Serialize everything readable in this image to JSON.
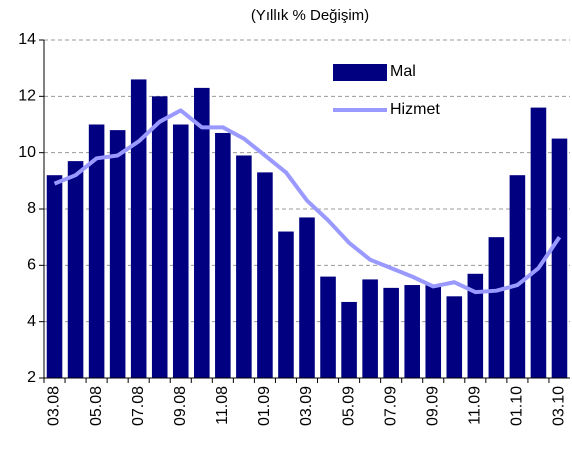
{
  "chart_data": {
    "type": "bar_line",
    "title": "(Yıllık % Değişim)",
    "categories": [
      "03.08",
      null,
      "05.08",
      null,
      "07.08",
      null,
      "09.08",
      null,
      "11.08",
      null,
      "01.09",
      null,
      "03.09",
      null,
      "05.09",
      null,
      "07.09",
      null,
      "09.09",
      null,
      "11.09",
      null,
      "01.10",
      null,
      "03.10"
    ],
    "series": [
      {
        "name": "Mal",
        "type": "bar",
        "color": "#000080",
        "values": [
          9.2,
          9.7,
          11.0,
          10.8,
          12.6,
          12.0,
          11.0,
          12.3,
          10.7,
          9.9,
          9.3,
          7.2,
          7.7,
          5.6,
          4.7,
          5.5,
          5.2,
          5.3,
          5.3,
          4.9,
          5.7,
          7.0,
          9.2,
          11.6,
          10.5
        ]
      },
      {
        "name": "Hizmet",
        "type": "line",
        "color": "#9999ff",
        "values": [
          8.9,
          9.2,
          9.8,
          9.9,
          10.4,
          11.1,
          11.5,
          10.9,
          10.9,
          10.5,
          9.9,
          9.3,
          8.3,
          7.6,
          6.8,
          6.2,
          5.9,
          5.6,
          5.25,
          5.4,
          5.05,
          5.1,
          5.3,
          5.9,
          7.0
        ]
      }
    ],
    "ylim": [
      2,
      14
    ],
    "yticks": [
      2,
      4,
      6,
      8,
      10,
      12,
      14
    ],
    "grid": true,
    "legend": "upper right"
  }
}
